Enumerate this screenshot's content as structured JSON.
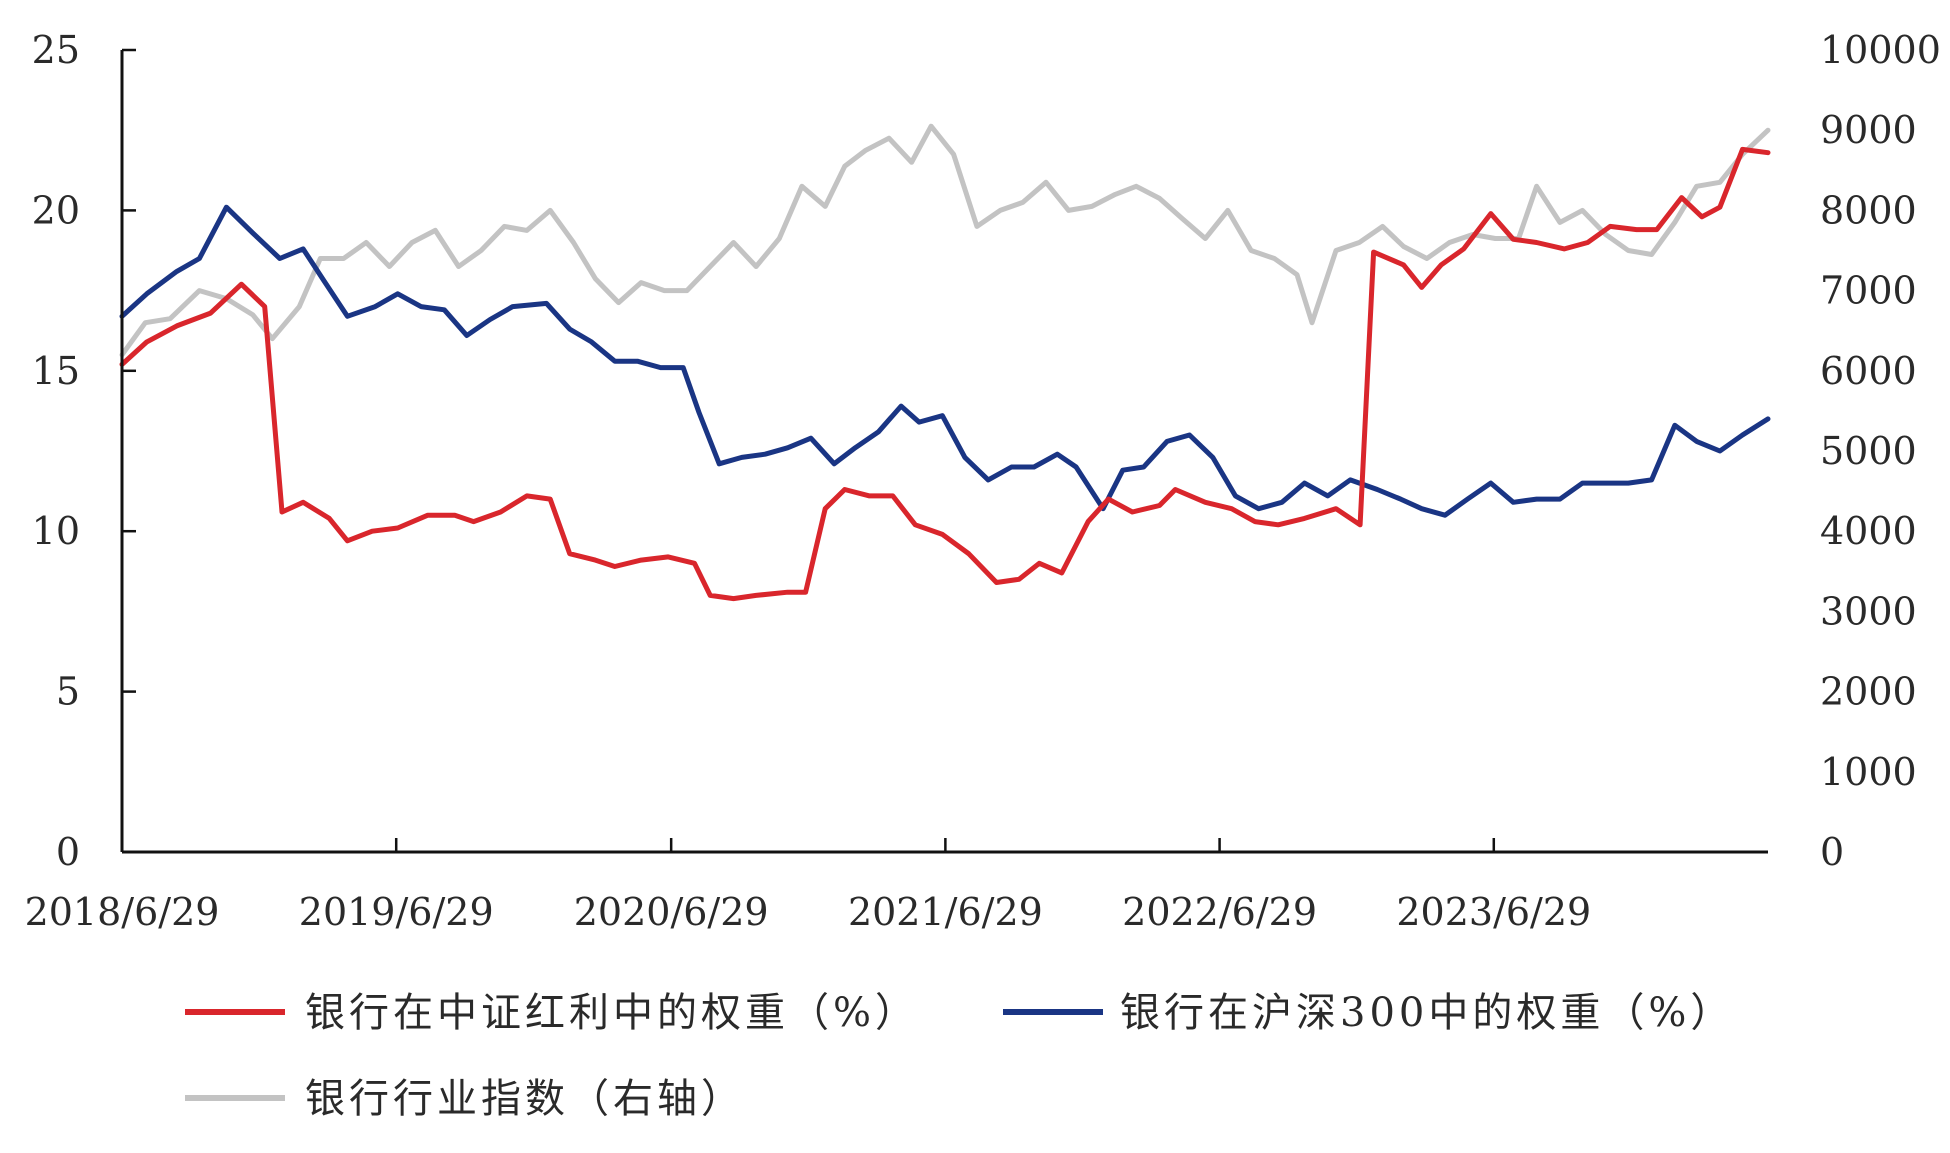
{
  "chart_data": {
    "type": "line",
    "x_ticks": [
      "2018/6/29",
      "2019/6/29",
      "2020/6/29",
      "2021/6/29",
      "2022/6/29",
      "2023/6/29"
    ],
    "y_left": {
      "ticks": [
        0,
        5,
        10,
        15,
        20,
        25
      ],
      "range": [
        0,
        25
      ]
    },
    "y_right": {
      "ticks": [
        0,
        1000,
        2000,
        3000,
        4000,
        5000,
        6000,
        7000,
        8000,
        9000,
        10000
      ],
      "range": [
        0,
        10000
      ]
    },
    "x_range": [
      "2018-06-29",
      "2024-06-28"
    ],
    "grid": false,
    "legend_position": "bottom",
    "series": [
      {
        "name": "银行在中证红利中的权重（%）",
        "axis": "left",
        "color": "#d9262c",
        "points": [
          [
            "2018-06-29",
            15.2
          ],
          [
            "2018-08-01",
            15.9
          ],
          [
            "2018-09-10",
            16.4
          ],
          [
            "2018-10-25",
            16.8
          ],
          [
            "2018-12-05",
            17.7
          ],
          [
            "2019-01-05",
            17.0
          ],
          [
            "2019-01-28",
            10.6
          ],
          [
            "2019-02-25",
            10.9
          ],
          [
            "2019-04-01",
            10.4
          ],
          [
            "2019-04-25",
            9.7
          ],
          [
            "2019-05-28",
            10.0
          ],
          [
            "2019-07-01",
            10.1
          ],
          [
            "2019-08-10",
            10.5
          ],
          [
            "2019-09-15",
            10.5
          ],
          [
            "2019-10-10",
            10.3
          ],
          [
            "2019-11-15",
            10.6
          ],
          [
            "2019-12-20",
            11.1
          ],
          [
            "2020-01-20",
            11.0
          ],
          [
            "2020-02-15",
            9.3
          ],
          [
            "2020-03-20",
            9.1
          ],
          [
            "2020-04-15",
            8.9
          ],
          [
            "2020-05-20",
            9.1
          ],
          [
            "2020-06-25",
            9.2
          ],
          [
            "2020-07-30",
            9.0
          ],
          [
            "2020-08-20",
            8.0
          ],
          [
            "2020-09-20",
            7.9
          ],
          [
            "2020-10-20",
            8.0
          ],
          [
            "2020-12-01",
            8.1
          ],
          [
            "2020-12-25",
            8.1
          ],
          [
            "2021-01-20",
            10.7
          ],
          [
            "2021-02-15",
            11.3
          ],
          [
            "2021-03-20",
            11.1
          ],
          [
            "2021-04-20",
            11.1
          ],
          [
            "2021-05-20",
            10.2
          ],
          [
            "2021-06-25",
            9.9
          ],
          [
            "2021-07-30",
            9.3
          ],
          [
            "2021-09-05",
            8.4
          ],
          [
            "2021-10-05",
            8.5
          ],
          [
            "2021-11-01",
            9.0
          ],
          [
            "2021-12-01",
            8.7
          ],
          [
            "2022-01-05",
            10.3
          ],
          [
            "2022-02-01",
            11.0
          ],
          [
            "2022-03-05",
            10.6
          ],
          [
            "2022-04-10",
            10.8
          ],
          [
            "2022-05-01",
            11.3
          ],
          [
            "2022-06-10",
            10.9
          ],
          [
            "2022-07-15",
            10.7
          ],
          [
            "2022-08-15",
            10.3
          ],
          [
            "2022-09-15",
            10.2
          ],
          [
            "2022-10-20",
            10.4
          ],
          [
            "2022-12-01",
            10.7
          ],
          [
            "2023-01-02",
            10.2
          ],
          [
            "2023-01-20",
            18.7
          ],
          [
            "2023-03-01",
            18.3
          ],
          [
            "2023-03-25",
            17.6
          ],
          [
            "2023-04-20",
            18.3
          ],
          [
            "2023-05-20",
            18.8
          ],
          [
            "2023-06-25",
            19.9
          ],
          [
            "2023-07-25",
            19.1
          ],
          [
            "2023-08-25",
            19.0
          ],
          [
            "2023-10-01",
            18.8
          ],
          [
            "2023-11-01",
            19.0
          ],
          [
            "2023-12-01",
            19.5
          ],
          [
            "2024-01-05",
            19.4
          ],
          [
            "2024-02-01",
            19.4
          ],
          [
            "2024-03-05",
            20.4
          ],
          [
            "2024-04-01",
            19.8
          ],
          [
            "2024-04-25",
            20.1
          ],
          [
            "2024-05-25",
            21.9
          ],
          [
            "2024-06-28",
            21.8
          ]
        ]
      },
      {
        "name": "银行在沪深300中的权重（%）",
        "axis": "left",
        "color": "#1a3584",
        "points": [
          [
            "2018-06-29",
            16.7
          ],
          [
            "2018-08-01",
            17.4
          ],
          [
            "2018-09-10",
            18.1
          ],
          [
            "2018-10-10",
            18.5
          ],
          [
            "2018-11-15",
            20.1
          ],
          [
            "2018-12-20",
            19.3
          ],
          [
            "2019-01-25",
            18.5
          ],
          [
            "2019-02-25",
            18.8
          ],
          [
            "2019-03-25",
            17.8
          ],
          [
            "2019-04-25",
            16.7
          ],
          [
            "2019-06-01",
            17.0
          ],
          [
            "2019-07-01",
            17.4
          ],
          [
            "2019-08-01",
            17.0
          ],
          [
            "2019-09-01",
            16.9
          ],
          [
            "2019-10-01",
            16.1
          ],
          [
            "2019-11-01",
            16.6
          ],
          [
            "2019-12-01",
            17.0
          ],
          [
            "2020-01-15",
            17.1
          ],
          [
            "2020-02-15",
            16.3
          ],
          [
            "2020-03-15",
            15.9
          ],
          [
            "2020-04-15",
            15.3
          ],
          [
            "2020-05-15",
            15.3
          ],
          [
            "2020-06-15",
            15.1
          ],
          [
            "2020-07-15",
            15.1
          ],
          [
            "2020-08-05",
            13.7
          ],
          [
            "2020-09-01",
            12.1
          ],
          [
            "2020-10-01",
            12.3
          ],
          [
            "2020-11-01",
            12.4
          ],
          [
            "2020-12-01",
            12.6
          ],
          [
            "2021-01-01",
            12.9
          ],
          [
            "2021-02-01",
            12.1
          ],
          [
            "2021-03-01",
            12.6
          ],
          [
            "2021-04-01",
            13.1
          ],
          [
            "2021-05-01",
            13.9
          ],
          [
            "2021-05-25",
            13.4
          ],
          [
            "2021-06-25",
            13.6
          ],
          [
            "2021-07-25",
            12.3
          ],
          [
            "2021-08-25",
            11.6
          ],
          [
            "2021-09-25",
            12.0
          ],
          [
            "2021-10-25",
            12.0
          ],
          [
            "2021-11-25",
            12.4
          ],
          [
            "2021-12-20",
            12.0
          ],
          [
            "2022-01-25",
            10.7
          ],
          [
            "2022-02-20",
            11.9
          ],
          [
            "2022-03-20",
            12.0
          ],
          [
            "2022-04-20",
            12.8
          ],
          [
            "2022-05-20",
            13.0
          ],
          [
            "2022-06-20",
            12.3
          ],
          [
            "2022-07-20",
            11.1
          ],
          [
            "2022-08-20",
            10.7
          ],
          [
            "2022-09-20",
            10.9
          ],
          [
            "2022-10-20",
            11.5
          ],
          [
            "2022-11-20",
            11.1
          ],
          [
            "2022-12-20",
            11.6
          ],
          [
            "2023-01-25",
            11.3
          ],
          [
            "2023-02-25",
            11.0
          ],
          [
            "2023-03-25",
            10.7
          ],
          [
            "2023-04-25",
            10.5
          ],
          [
            "2023-05-25",
            11.0
          ],
          [
            "2023-06-25",
            11.5
          ],
          [
            "2023-07-25",
            10.9
          ],
          [
            "2023-08-25",
            11.0
          ],
          [
            "2023-09-25",
            11.0
          ],
          [
            "2023-10-25",
            11.5
          ],
          [
            "2023-11-25",
            11.5
          ],
          [
            "2023-12-25",
            11.5
          ],
          [
            "2024-01-25",
            11.6
          ],
          [
            "2024-02-25",
            13.3
          ],
          [
            "2024-03-25",
            12.8
          ],
          [
            "2024-04-25",
            12.5
          ],
          [
            "2024-05-25",
            13.0
          ],
          [
            "2024-06-28",
            13.5
          ]
        ]
      },
      {
        "name": "银行行业指数（右轴）",
        "axis": "right",
        "color": "#c3c3c3",
        "points": [
          [
            "2018-06-29",
            6200
          ],
          [
            "2018-07-30",
            6600
          ],
          [
            "2018-09-01",
            6650
          ],
          [
            "2018-10-10",
            7000
          ],
          [
            "2018-11-15",
            6900
          ],
          [
            "2018-12-20",
            6700
          ],
          [
            "2019-01-15",
            6400
          ],
          [
            "2019-02-20",
            6800
          ],
          [
            "2019-03-20",
            7400
          ],
          [
            "2019-04-20",
            7400
          ],
          [
            "2019-05-20",
            7600
          ],
          [
            "2019-06-20",
            7300
          ],
          [
            "2019-07-20",
            7600
          ],
          [
            "2019-08-20",
            7750
          ],
          [
            "2019-09-20",
            7300
          ],
          [
            "2019-10-20",
            7500
          ],
          [
            "2019-11-20",
            7800
          ],
          [
            "2019-12-20",
            7750
          ],
          [
            "2020-01-20",
            8000
          ],
          [
            "2020-02-20",
            7600
          ],
          [
            "2020-03-20",
            7150
          ],
          [
            "2020-04-20",
            6850
          ],
          [
            "2020-05-20",
            7100
          ],
          [
            "2020-06-20",
            7000
          ],
          [
            "2020-07-20",
            7000
          ],
          [
            "2020-08-20",
            7300
          ],
          [
            "2020-09-20",
            7600
          ],
          [
            "2020-10-20",
            7300
          ],
          [
            "2020-11-20",
            7650
          ],
          [
            "2020-12-20",
            8300
          ],
          [
            "2021-01-20",
            8050
          ],
          [
            "2021-02-15",
            8550
          ],
          [
            "2021-03-15",
            8750
          ],
          [
            "2021-04-15",
            8900
          ],
          [
            "2021-05-15",
            8600
          ],
          [
            "2021-06-10",
            9050
          ],
          [
            "2021-07-10",
            8700
          ],
          [
            "2021-08-10",
            7800
          ],
          [
            "2021-09-10",
            8000
          ],
          [
            "2021-10-10",
            8100
          ],
          [
            "2021-11-10",
            8350
          ],
          [
            "2021-12-10",
            8000
          ],
          [
            "2022-01-10",
            8050
          ],
          [
            "2022-02-10",
            8200
          ],
          [
            "2022-03-10",
            8300
          ],
          [
            "2022-04-10",
            8150
          ],
          [
            "2022-05-10",
            7900
          ],
          [
            "2022-06-10",
            7650
          ],
          [
            "2022-07-10",
            8000
          ],
          [
            "2022-08-10",
            7500
          ],
          [
            "2022-09-10",
            7400
          ],
          [
            "2022-10-10",
            7200
          ],
          [
            "2022-10-30",
            6600
          ],
          [
            "2022-12-01",
            7500
          ],
          [
            "2023-01-01",
            7600
          ],
          [
            "2023-02-01",
            7800
          ],
          [
            "2023-03-01",
            7550
          ],
          [
            "2023-04-01",
            7400
          ],
          [
            "2023-05-01",
            7600
          ],
          [
            "2023-06-01",
            7700
          ],
          [
            "2023-07-01",
            7650
          ],
          [
            "2023-08-01",
            7650
          ],
          [
            "2023-08-25",
            8300
          ],
          [
            "2023-09-25",
            7850
          ],
          [
            "2023-10-25",
            8000
          ],
          [
            "2023-11-25",
            7700
          ],
          [
            "2023-12-25",
            7500
          ],
          [
            "2024-01-25",
            7450
          ],
          [
            "2024-02-25",
            7850
          ],
          [
            "2024-03-25",
            8300
          ],
          [
            "2024-04-25",
            8350
          ],
          [
            "2024-05-25",
            8700
          ],
          [
            "2024-06-28",
            9000
          ]
        ]
      }
    ]
  }
}
